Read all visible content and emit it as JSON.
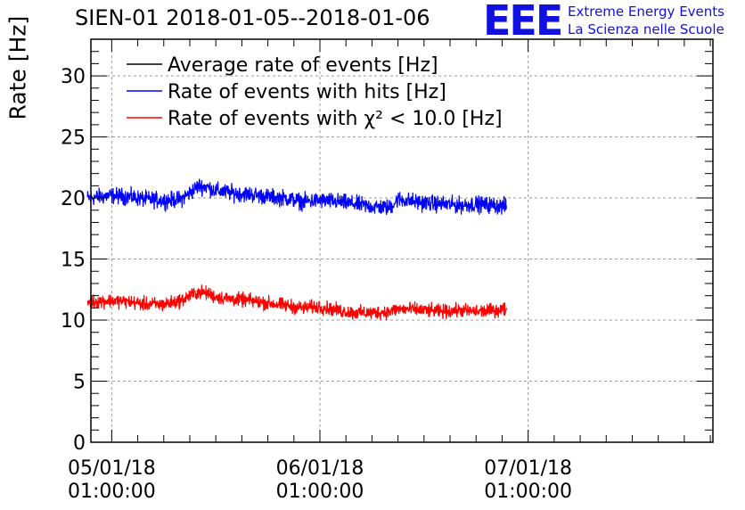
{
  "chart_data": {
    "type": "line",
    "title": "SIEN-01 2018-01-05--2018-01-06",
    "ylabel": "Rate [Hz]",
    "xlabel": "",
    "ylim": [
      0,
      33
    ],
    "yticks": [
      0,
      5,
      10,
      15,
      20,
      25,
      30
    ],
    "xlim_hours": [
      -2.4,
      69.3
    ],
    "xticks": [
      {
        "hours": 0,
        "date": "05/01/18",
        "time": "01:00:00"
      },
      {
        "hours": 24,
        "date": "06/01/18",
        "time": "01:00:00"
      },
      {
        "hours": 48,
        "date": "07/01/18",
        "time": "01:00:00"
      }
    ],
    "grid": true,
    "legend_position": "top-left",
    "series": [
      {
        "name": "Average rate of events [Hz]",
        "color": "#000000",
        "x_hours": [],
        "values": []
      },
      {
        "name": "Rate of events with hits [Hz]",
        "color": "#0000ff",
        "x_hours": [
          -2.8,
          0,
          2,
          4,
          6,
          8,
          9,
          10,
          11,
          12,
          14,
          16,
          18,
          20,
          22,
          24,
          26,
          28,
          30,
          32,
          33,
          34,
          36,
          38,
          40,
          42,
          44,
          45.5
        ],
        "values": [
          20.0,
          20.2,
          20.1,
          19.9,
          19.8,
          19.9,
          20.4,
          21.0,
          20.9,
          20.6,
          20.4,
          20.3,
          20.1,
          20.0,
          19.7,
          19.8,
          19.7,
          19.5,
          19.3,
          19.2,
          19.9,
          19.8,
          19.6,
          19.5,
          19.4,
          19.5,
          19.4,
          19.3
        ],
        "noise": 1.0
      },
      {
        "name": "Rate of events with χ² < 10.0 [Hz]",
        "color": "#ff0000",
        "x_hours": [
          -2.8,
          0,
          2,
          4,
          6,
          8,
          9,
          10,
          11,
          12,
          14,
          16,
          18,
          20,
          22,
          24,
          26,
          28,
          30,
          32,
          33,
          34,
          36,
          38,
          40,
          42,
          44,
          45.5
        ],
        "values": [
          11.5,
          11.6,
          11.5,
          11.3,
          11.3,
          11.6,
          12.0,
          12.3,
          12.2,
          11.9,
          11.7,
          11.6,
          11.4,
          11.2,
          11.0,
          11.1,
          10.8,
          10.6,
          10.6,
          10.7,
          10.9,
          10.9,
          10.8,
          10.7,
          10.8,
          10.7,
          10.8,
          10.9
        ],
        "noise": 0.85
      }
    ]
  },
  "logo": {
    "mark": "EEE",
    "line1": "Extreme Energy Events",
    "line2": "La Scienza nelle Scuole"
  }
}
